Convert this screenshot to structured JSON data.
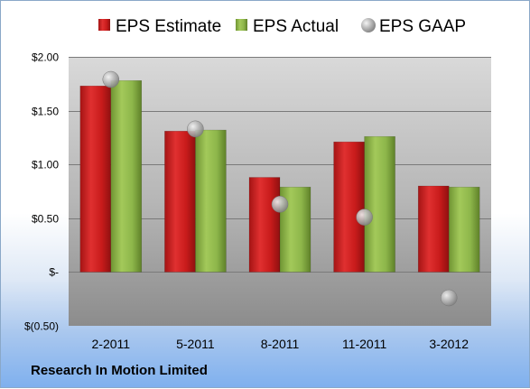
{
  "chart_data": {
    "type": "bar",
    "categories": [
      "2-2011",
      "5-2011",
      "8-2011",
      "11-2011",
      "3-2012"
    ],
    "series": [
      {
        "name": "EPS Estimate",
        "kind": "bar",
        "color": "#d01f1f",
        "values": [
          1.73,
          1.31,
          0.88,
          1.21,
          0.8
        ]
      },
      {
        "name": "EPS Actual",
        "kind": "bar",
        "color": "#8db64a",
        "values": [
          1.78,
          1.32,
          0.79,
          1.26,
          0.79
        ]
      },
      {
        "name": "EPS GAAP",
        "kind": "marker",
        "color": "#a0a0a0",
        "values": [
          1.79,
          1.33,
          0.63,
          0.51,
          -0.24
        ]
      }
    ],
    "yticks": [
      {
        "value": 2.0,
        "label": "$2.00"
      },
      {
        "value": 1.5,
        "label": "$1.50"
      },
      {
        "value": 1.0,
        "label": "$1.00"
      },
      {
        "value": 0.5,
        "label": "$0.50"
      },
      {
        "value": 0.0,
        "label": "$-"
      },
      {
        "value": -0.5,
        "label": "$(0.50)"
      }
    ],
    "ylim": [
      -0.5,
      2.0
    ],
    "grid": true,
    "legend_position": "top"
  },
  "footer": {
    "company": "Research In Motion Limited"
  }
}
